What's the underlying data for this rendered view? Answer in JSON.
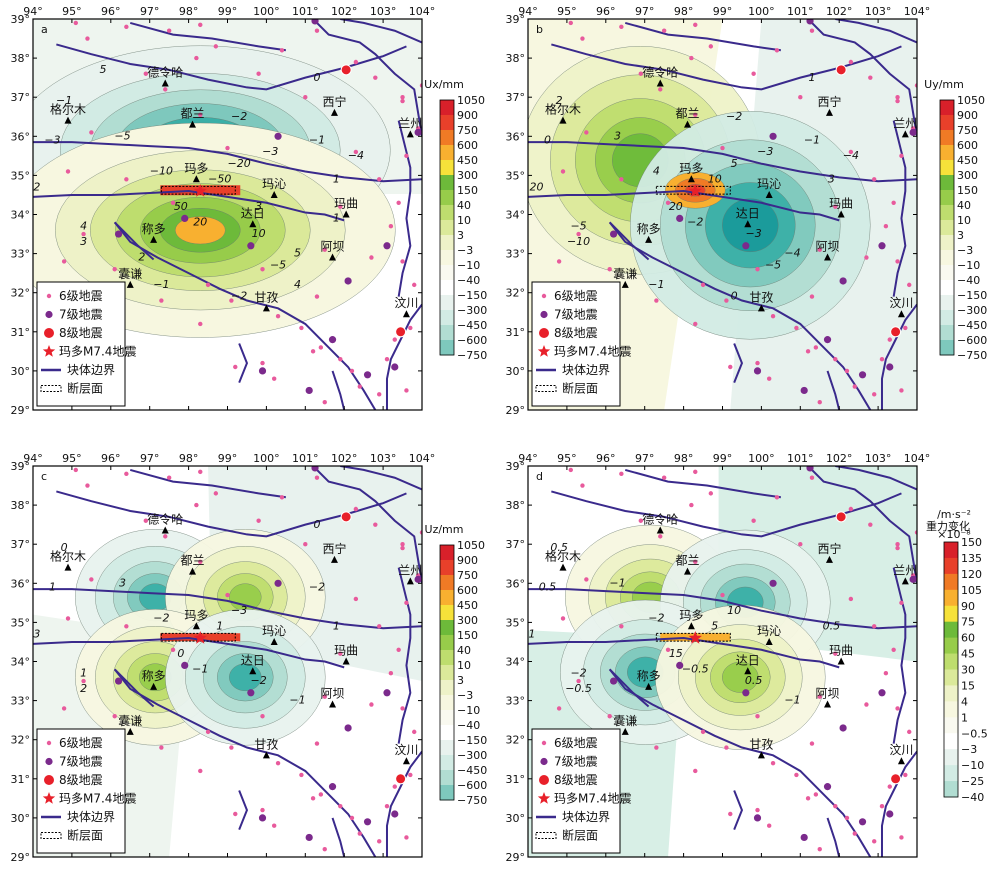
{
  "axes": {
    "lon_ticks": [
      "94°",
      "95°",
      "96°",
      "97°",
      "98°",
      "99°",
      "100°",
      "101°",
      "102°",
      "103°",
      "104°"
    ],
    "lat_ticks": [
      "39°",
      "38°",
      "37°",
      "36°",
      "35°",
      "34°",
      "33°",
      "32°",
      "31°",
      "30°",
      "29°"
    ]
  },
  "cities": [
    {
      "name": "德令哈",
      "lon": 97.4,
      "lat": 37.35
    },
    {
      "name": "格尔木",
      "lon": 94.9,
      "lat": 36.4
    },
    {
      "name": "都兰",
      "lon": 98.1,
      "lat": 36.3
    },
    {
      "name": "西宁",
      "lon": 101.75,
      "lat": 36.6
    },
    {
      "name": "兰州",
      "lon": 103.7,
      "lat": 36.05
    },
    {
      "name": "玛多",
      "lon": 98.2,
      "lat": 34.9
    },
    {
      "name": "玛沁",
      "lon": 100.2,
      "lat": 34.5
    },
    {
      "name": "玛曲",
      "lon": 102.05,
      "lat": 34.0
    },
    {
      "name": "达日",
      "lon": 99.65,
      "lat": 33.75
    },
    {
      "name": "称多",
      "lon": 97.1,
      "lat": 33.35
    },
    {
      "name": "阿坝",
      "lon": 101.7,
      "lat": 32.9
    },
    {
      "name": "囊谦",
      "lon": 96.5,
      "lat": 32.2
    },
    {
      "name": "甘孜",
      "lon": 100.0,
      "lat": 31.6
    },
    {
      "name": "汶川",
      "lon": 103.6,
      "lat": 31.45
    }
  ],
  "legend": {
    "m6": "6级地震",
    "m7": "7级地震",
    "m8": "8级地震",
    "main": "玛多M7.4地震",
    "boundary": "块体边界",
    "fault": "断层面"
  },
  "panels": [
    {
      "letter": "a",
      "cb_title": "Ux/mm",
      "cb_ticks": [
        "1050",
        "900",
        "750",
        "600",
        "450",
        "300",
        "150",
        "40",
        "10",
        "3",
        "−3",
        "−10",
        "−40",
        "−150",
        "−300",
        "−450",
        "−600",
        "−750"
      ],
      "contour_labels": [
        "−1",
        "−2",
        "−3",
        "−4",
        "−5",
        "−10",
        "−20",
        "−50",
        "50",
        "20",
        "10",
        "5",
        "4",
        "3",
        "2",
        "1",
        "0",
        "0",
        "−1",
        "−2",
        "−3",
        "−4",
        "−5",
        "−1",
        "−2",
        "5",
        "4",
        "3",
        "2",
        "1"
      ]
    },
    {
      "letter": "b",
      "cb_title": "Uy/mm",
      "cb_ticks": [
        "1050",
        "900",
        "750",
        "600",
        "450",
        "300",
        "150",
        "40",
        "10",
        "3",
        "−3",
        "−10",
        "−40",
        "−150",
        "−300",
        "−450",
        "−600",
        "−750"
      ],
      "contour_labels": [
        "2",
        "1",
        "0",
        "−1",
        "3",
        "4",
        "5",
        "10",
        "20",
        "−2",
        "−3",
        "−4",
        "−5",
        "−10",
        "−20",
        "3",
        "2",
        "1",
        "−1",
        "−2",
        "−3",
        "−4",
        "−5",
        "−1",
        "0"
      ]
    },
    {
      "letter": "c",
      "cb_title": "Uz/mm",
      "cb_ticks": [
        "1050",
        "900",
        "750",
        "600",
        "450",
        "300",
        "150",
        "40",
        "10",
        "3",
        "−3",
        "−10",
        "−40",
        "−150",
        "−300",
        "−450",
        "−600",
        "−750"
      ],
      "contour_labels": [
        "0",
        "−1",
        "1",
        "2",
        "3",
        "−2",
        "−3",
        "1",
        "0",
        "−1",
        "−2",
        "−1",
        "1",
        "2",
        "3",
        "1",
        "0",
        "0",
        "−2"
      ]
    },
    {
      "letter": "d",
      "cb_title": "重力变化",
      "cb_unit": "/m·s⁻²",
      "cb_scale": "×10⁻⁸",
      "cb_ticks": [
        "150",
        "135",
        "120",
        "105",
        "90",
        "75",
        "60",
        "45",
        "30",
        "15",
        "4",
        "1",
        "−0.5",
        "−3",
        "−10",
        "−25",
        "−40"
      ],
      "contour_labels": [
        "0.5",
        "−0.5",
        "0.5",
        "1",
        "−1",
        "−2",
        "10",
        "5",
        "15",
        "−0.5",
        "0.5",
        "−1",
        "−2",
        "−0.5",
        "1",
        "0.5",
        "0"
      ]
    }
  ],
  "colors": {
    "boundary": "#3a2a8c",
    "m6": "#e85a9c",
    "m7": "#7b2a8c",
    "m8": "#e8202a",
    "star": "#e8202a"
  }
}
